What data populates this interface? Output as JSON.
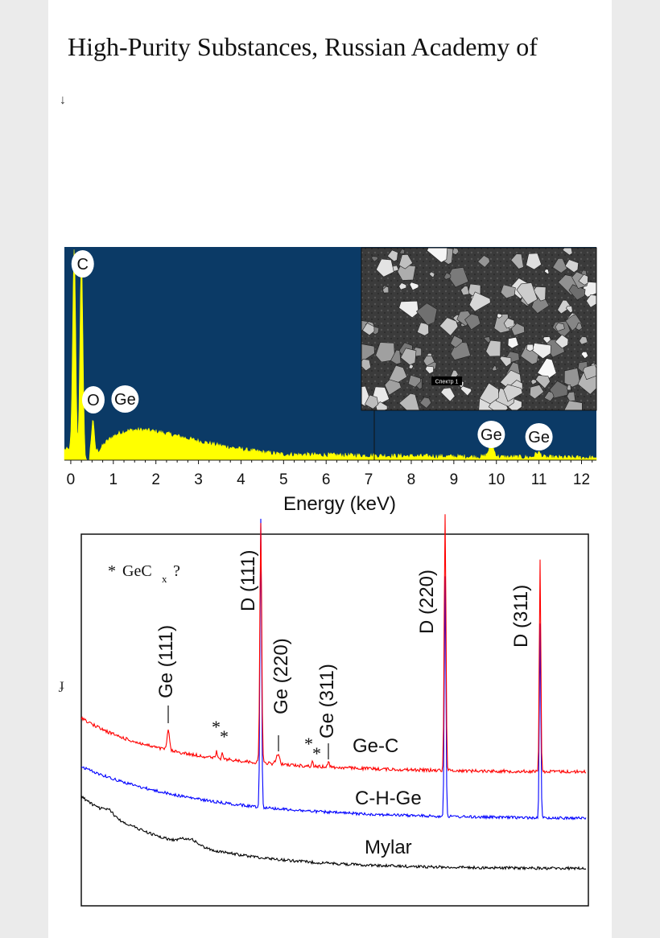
{
  "header_text": "High-Purity Substances, Russian Academy of",
  "arrow_glyph": "↓",
  "side_glyph": "ɟ",
  "colors": {
    "eds_background": "#0b3a66",
    "eds_fill": "#ffff00",
    "gec": "#ff0000",
    "chge": "#0000ff",
    "mylar": "#000000"
  },
  "chart_data": [
    {
      "type": "area",
      "xlabel": "Energy (keV)",
      "ylabel": "",
      "xlim": [
        -0.15,
        12.35
      ],
      "x_ticks": [
        "0",
        "1",
        "2",
        "3",
        "4",
        "5",
        "6",
        "7",
        "8",
        "9",
        "10",
        "11",
        "12"
      ],
      "peaks": [
        {
          "label": "C",
          "x": 0.28
        },
        {
          "label": "O",
          "x": 0.53
        },
        {
          "label": "Ge",
          "x": 1.2
        },
        {
          "label": "Ge",
          "x": 9.88
        },
        {
          "label": "Ge",
          "x": 11.0
        }
      ],
      "inset_label": "Спектр 1"
    },
    {
      "type": "line",
      "xlabel": "",
      "ylabel": "",
      "legend_note": "GeC",
      "legend_sub": "x",
      "legend_q": "?",
      "legend_star": "*",
      "series": [
        {
          "name": "Ge-C",
          "color": "#ff0000"
        },
        {
          "name": "C-H-Ge",
          "color": "#0000ff"
        },
        {
          "name": "Mylar",
          "color": "#000000"
        }
      ],
      "annotations": [
        {
          "text": "D (111)"
        },
        {
          "text": "D (220)"
        },
        {
          "text": "D (311)"
        },
        {
          "text": "Ge (111)"
        },
        {
          "text": "Ge (220)"
        },
        {
          "text": "Ge (311)"
        }
      ],
      "stars": [
        "*",
        "*",
        "*",
        "*"
      ]
    }
  ]
}
